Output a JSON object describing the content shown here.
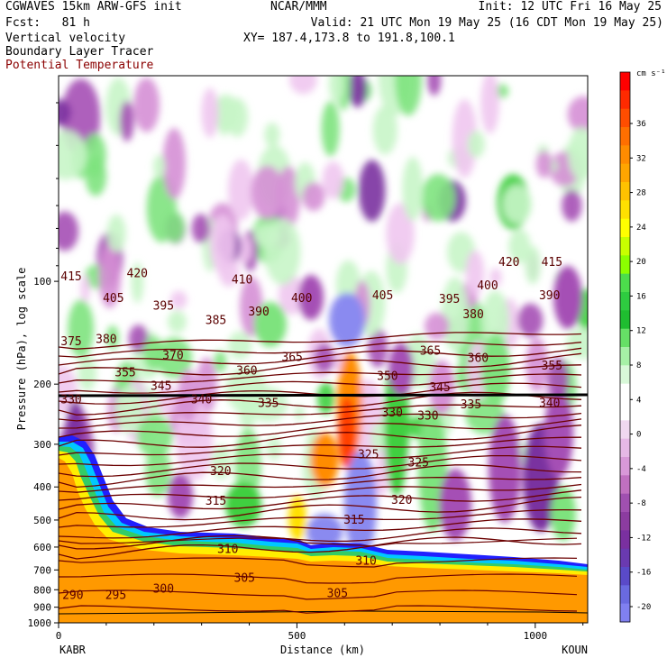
{
  "header": {
    "line1_left": "CGWAVES 15km ARW-GFS init",
    "line1_center": "NCAR/MMM",
    "line1_right": "Init: 12 UTC Fri 16 May 25",
    "line2_left": "Fcst:   81 h",
    "line2_right": "Valid: 21 UTC Mon 19 May 25 (16 CDT Mon 19 May 25)",
    "line3_left": "Vertical velocity",
    "line3_right": "XY= 187.4,173.8 to 191.8,100.1",
    "line4_left": "Boundary Layer Tracer",
    "line5_left": "Potential Temperature",
    "line5_color": "#8b0000"
  },
  "chart_data": {
    "type": "heatmap",
    "xlabel": "Distance (km)",
    "ylabel": "Pressure (hPa), log scale",
    "x_ticks": [
      0,
      500,
      1000
    ],
    "x_tick_labels": [
      "0",
      "500",
      "1000"
    ],
    "xlim": [
      0,
      1110
    ],
    "y_ticks": [
      100,
      200,
      300,
      400,
      500,
      600,
      700,
      800,
      900,
      1000
    ],
    "y_tick_labels": [
      "100",
      "200",
      "300",
      "400",
      "500",
      "600",
      "700",
      "800",
      "900",
      "1000"
    ],
    "ylim": [
      1000,
      25
    ],
    "y_scale": "log",
    "left_endpoint": "KABR",
    "right_endpoint": "KOUN",
    "colorbar": {
      "unit": "cm s⁻¹",
      "labels": [
        "36",
        "32",
        "28",
        "24",
        "20",
        "16",
        "12",
        "8",
        "4",
        "0",
        "-4",
        "-8",
        "-12",
        "-16",
        "-20"
      ],
      "colors": [
        "#ff0000",
        "#ff2a00",
        "#ff4d00",
        "#ff6f00",
        "#ff8c00",
        "#ffa500",
        "#ffc200",
        "#ffe000",
        "#ffff00",
        "#c8ff00",
        "#8cff00",
        "#4cdd4c",
        "#2ecc40",
        "#1fbd30",
        "#66e066",
        "#a6f0a6",
        "#d8f8d8",
        "#ffffff",
        "#ffffff",
        "#f0d8f0",
        "#e6b8e6",
        "#d898d8",
        "#c070c0",
        "#a050b0",
        "#8c3ca0",
        "#7a30a0",
        "#6a3ab0",
        "#5a4ac8",
        "#6a6ae0",
        "#8080f0"
      ]
    },
    "theta_labels": [
      {
        "text": "415",
        "x": 0,
        "p": 97
      },
      {
        "text": "420",
        "x": 165,
        "p": 95
      },
      {
        "text": "405",
        "x": 115,
        "p": 112
      },
      {
        "text": "395",
        "x": 220,
        "p": 118
      },
      {
        "text": "410",
        "x": 385,
        "p": 99
      },
      {
        "text": "400",
        "x": 510,
        "p": 112
      },
      {
        "text": "405",
        "x": 680,
        "p": 110
      },
      {
        "text": "395",
        "x": 820,
        "p": 113
      },
      {
        "text": "400",
        "x": 900,
        "p": 103
      },
      {
        "text": "420",
        "x": 945,
        "p": 88
      },
      {
        "text": "415",
        "x": 1035,
        "p": 88
      },
      {
        "text": "390",
        "x": 1030,
        "p": 110
      },
      {
        "text": "390",
        "x": 420,
        "p": 123
      },
      {
        "text": "385",
        "x": 330,
        "p": 130
      },
      {
        "text": "380",
        "x": 870,
        "p": 125
      },
      {
        "text": "375",
        "x": 0,
        "p": 150
      },
      {
        "text": "380",
        "x": 100,
        "p": 148
      },
      {
        "text": "370",
        "x": 240,
        "p": 165
      },
      {
        "text": "365",
        "x": 490,
        "p": 167
      },
      {
        "text": "365",
        "x": 780,
        "p": 160
      },
      {
        "text": "360",
        "x": 395,
        "p": 183
      },
      {
        "text": "360",
        "x": 880,
        "p": 168
      },
      {
        "text": "355",
        "x": 140,
        "p": 185
      },
      {
        "text": "355",
        "x": 1035,
        "p": 177
      },
      {
        "text": "350",
        "x": 690,
        "p": 190
      },
      {
        "text": "345",
        "x": 215,
        "p": 203
      },
      {
        "text": "345",
        "x": 800,
        "p": 205
      },
      {
        "text": "340",
        "x": 300,
        "p": 222
      },
      {
        "text": "340",
        "x": 1030,
        "p": 228
      },
      {
        "text": "335",
        "x": 440,
        "p": 228
      },
      {
        "text": "335",
        "x": 865,
        "p": 230
      },
      {
        "text": "330",
        "x": 25,
        "p": 222
      },
      {
        "text": "330",
        "x": 700,
        "p": 243
      },
      {
        "text": "330",
        "x": 775,
        "p": 248
      },
      {
        "text": "325",
        "x": 650,
        "p": 322
      },
      {
        "text": "325",
        "x": 755,
        "p": 340
      },
      {
        "text": "320",
        "x": 340,
        "p": 360
      },
      {
        "text": "320",
        "x": 720,
        "p": 437
      },
      {
        "text": "315",
        "x": 330,
        "p": 440
      },
      {
        "text": "315",
        "x": 620,
        "p": 500
      },
      {
        "text": "310",
        "x": 355,
        "p": 610
      },
      {
        "text": "310",
        "x": 645,
        "p": 660
      },
      {
        "text": "305",
        "x": 390,
        "p": 740
      },
      {
        "text": "305",
        "x": 585,
        "p": 820
      },
      {
        "text": "300",
        "x": 220,
        "p": 795
      },
      {
        "text": "295",
        "x": 120,
        "p": 830
      },
      {
        "text": "290",
        "x": 30,
        "p": 830
      }
    ]
  }
}
